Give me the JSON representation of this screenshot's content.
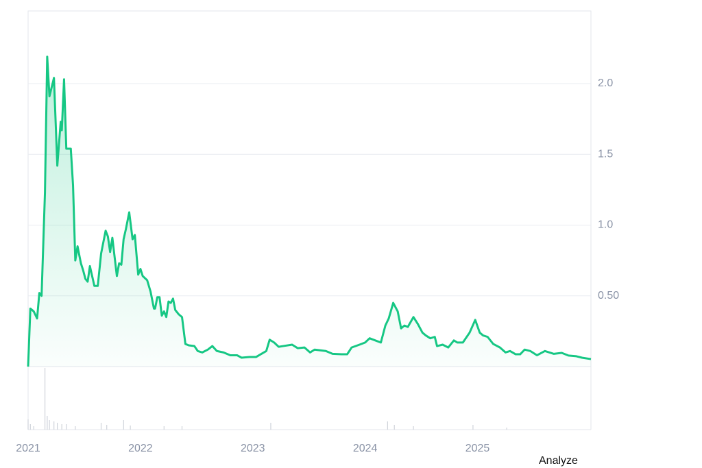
{
  "chart_data": [
    {
      "type": "line",
      "color": "#16c784",
      "x": [
        2021.0,
        2021.02,
        2021.05,
        2021.08,
        2021.1,
        2021.12,
        2021.15,
        2021.17,
        2021.19,
        2021.23,
        2021.26,
        2021.29,
        2021.3,
        2021.32,
        2021.34,
        2021.38,
        2021.4,
        2021.42,
        2021.44,
        2021.47,
        2021.49,
        2021.51,
        2021.53,
        2021.55,
        2021.59,
        2021.62,
        2021.65,
        2021.69,
        2021.71,
        2021.73,
        2021.75,
        2021.79,
        2021.81,
        2021.83,
        2021.85,
        2021.87,
        2021.9,
        2021.93,
        2021.95,
        2021.98,
        2022.0,
        2022.02,
        2022.06,
        2022.09,
        2022.12,
        2022.13,
        2022.15,
        2022.17,
        2022.19,
        2022.21,
        2022.23,
        2022.25,
        2022.27,
        2022.29,
        2022.31,
        2022.34,
        2022.37,
        2022.4,
        2022.43,
        2022.48,
        2022.51,
        2022.55,
        2022.6,
        2022.64,
        2022.68,
        2022.74,
        2022.8,
        2022.86,
        2022.9,
        2022.97,
        2023.03,
        2023.12,
        2023.15,
        2023.19,
        2023.23,
        2023.27,
        2023.35,
        2023.4,
        2023.46,
        2023.51,
        2023.55,
        2023.65,
        2023.71,
        2023.79,
        2023.84,
        2023.88,
        2023.95,
        2024.0,
        2024.04,
        2024.09,
        2024.14,
        2024.18,
        2024.21,
        2024.25,
        2024.29,
        2024.32,
        2024.35,
        2024.38,
        2024.43,
        2024.47,
        2024.51,
        2024.54,
        2024.58,
        2024.62,
        2024.64,
        2024.69,
        2024.74,
        2024.79,
        2024.82,
        2024.87,
        2024.93,
        2024.98,
        2025.02,
        2025.05,
        2025.09,
        2025.14,
        2025.2,
        2025.25,
        2025.29,
        2025.34,
        2025.38,
        2025.42,
        2025.47,
        2025.53,
        2025.6,
        2025.68,
        2025.75,
        2025.81,
        2025.88,
        2025.93,
        2026.01
      ],
      "values": [
        0,
        0.41,
        0.39,
        0.34,
        0.52,
        0.5,
        1.23,
        2.19,
        1.91,
        2.04,
        1.42,
        1.73,
        1.67,
        2.03,
        1.54,
        1.54,
        1.28,
        0.75,
        0.85,
        0.73,
        0.68,
        0.62,
        0.6,
        0.71,
        0.57,
        0.57,
        0.8,
        0.96,
        0.92,
        0.81,
        0.91,
        0.64,
        0.73,
        0.72,
        0.9,
        0.97,
        1.09,
        0.9,
        0.93,
        0.65,
        0.69,
        0.64,
        0.61,
        0.53,
        0.41,
        0.41,
        0.49,
        0.49,
        0.36,
        0.39,
        0.35,
        0.46,
        0.45,
        0.48,
        0.4,
        0.37,
        0.35,
        0.16,
        0.15,
        0.145,
        0.11,
        0.1,
        0.12,
        0.145,
        0.11,
        0.1,
        0.08,
        0.08,
        0.063,
        0.068,
        0.068,
        0.11,
        0.19,
        0.17,
        0.14,
        0.145,
        0.155,
        0.13,
        0.135,
        0.1,
        0.12,
        0.11,
        0.09,
        0.087,
        0.087,
        0.135,
        0.155,
        0.17,
        0.2,
        0.185,
        0.17,
        0.29,
        0.34,
        0.45,
        0.39,
        0.27,
        0.29,
        0.28,
        0.35,
        0.3,
        0.24,
        0.22,
        0.2,
        0.21,
        0.145,
        0.155,
        0.135,
        0.185,
        0.17,
        0.17,
        0.24,
        0.33,
        0.24,
        0.22,
        0.21,
        0.16,
        0.135,
        0.1,
        0.11,
        0.087,
        0.087,
        0.12,
        0.11,
        0.08,
        0.11,
        0.09,
        0.097,
        0.078,
        0.073,
        0.063,
        0.053
      ],
      "xlim": [
        2021.0,
        2026.01
      ],
      "xticks": [
        2021,
        2022,
        2023,
        2024,
        2025
      ],
      "ylim": [
        0,
        2.513
      ],
      "yticks": [
        {
          "value": 0.5,
          "label": "0.50"
        },
        {
          "value": 1,
          "label": "1.0"
        },
        1.5,
        {
          "value": 2,
          "label": "2.0"
        }
      ],
      "grid": true
    },
    {
      "type": "bar",
      "color": "#cfd3da",
      "x": [
        2021.0,
        2021.02,
        2021.05,
        2021.15,
        2021.17,
        2021.19,
        2021.23,
        2021.26,
        2021.3,
        2021.34,
        2021.42,
        2021.65,
        2021.7,
        2021.85,
        2021.91,
        2022.21,
        2022.37,
        2023.16,
        2024.2,
        2024.26,
        2024.43,
        2024.96,
        2025.26
      ],
      "values": [
        15,
        8,
        5,
        90,
        20,
        14,
        12,
        10,
        8,
        8,
        5,
        10,
        7,
        14,
        6,
        5,
        5,
        10,
        12,
        7,
        5,
        7,
        3
      ],
      "xlim": [
        2021.0,
        2026.01
      ],
      "ylim": [
        0,
        92
      ]
    }
  ],
  "button": "Analyze"
}
